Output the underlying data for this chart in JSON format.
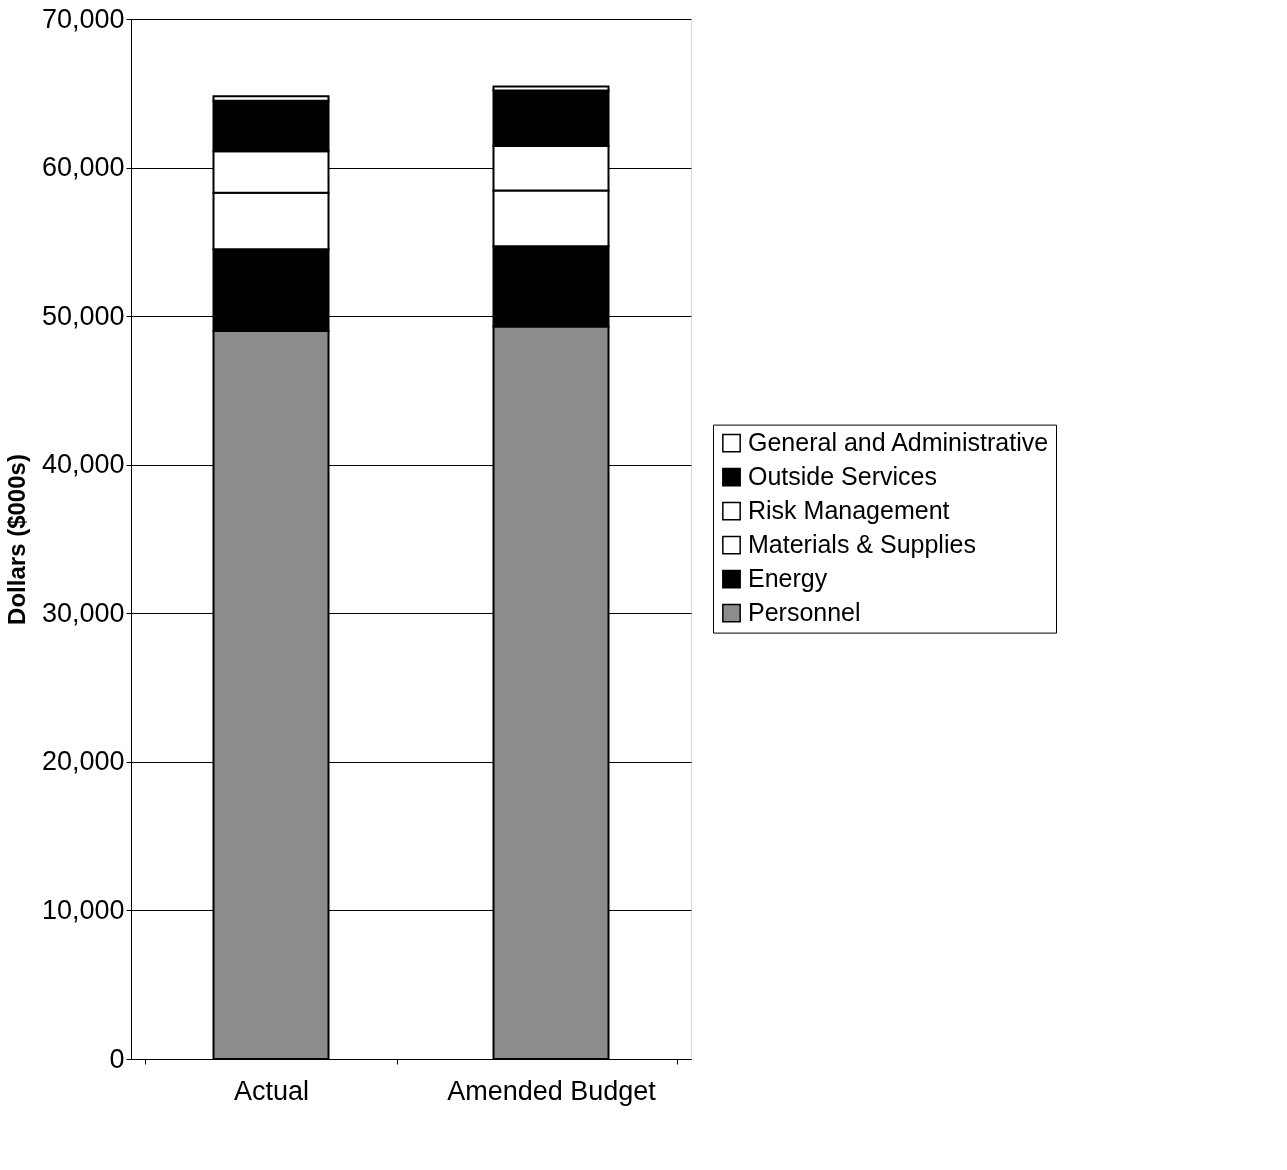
{
  "chart_data": {
    "type": "bar",
    "stacked": true,
    "ylabel": "Dollars ($000s)",
    "categories": [
      "Actual",
      "Amended Budget"
    ],
    "series": [
      {
        "name": "Personnel",
        "color": "#8c8c8c",
        "values": [
          49000,
          49300
        ]
      },
      {
        "name": "Energy",
        "color": "#000000",
        "values": [
          5500,
          5400
        ]
      },
      {
        "name": "Materials & Supplies",
        "color": "#ffffff",
        "values": [
          3800,
          3750
        ]
      },
      {
        "name": "Risk Management",
        "color": "#ffffff",
        "values": [
          2800,
          3000
        ]
      },
      {
        "name": "Outside Services",
        "color": "#000000",
        "values": [
          3400,
          3730
        ]
      },
      {
        "name": "General and Administrative",
        "color": "#ffffff",
        "values": [
          300,
          270
        ]
      }
    ],
    "ylim": [
      0,
      70000
    ],
    "yticks": [
      0,
      {
        "value": 10000,
        "label": "10,000"
      },
      {
        "value": 20000,
        "label": "20,000"
      },
      {
        "value": 30000,
        "label": "30,000"
      },
      {
        "value": 40000,
        "label": "40,000"
      },
      {
        "value": 50000,
        "label": "50,000"
      },
      {
        "value": 60000,
        "label": "60,000"
      },
      {
        "value": 70000,
        "label": "70,000"
      }
    ],
    "grid": "y",
    "legend": "right"
  }
}
